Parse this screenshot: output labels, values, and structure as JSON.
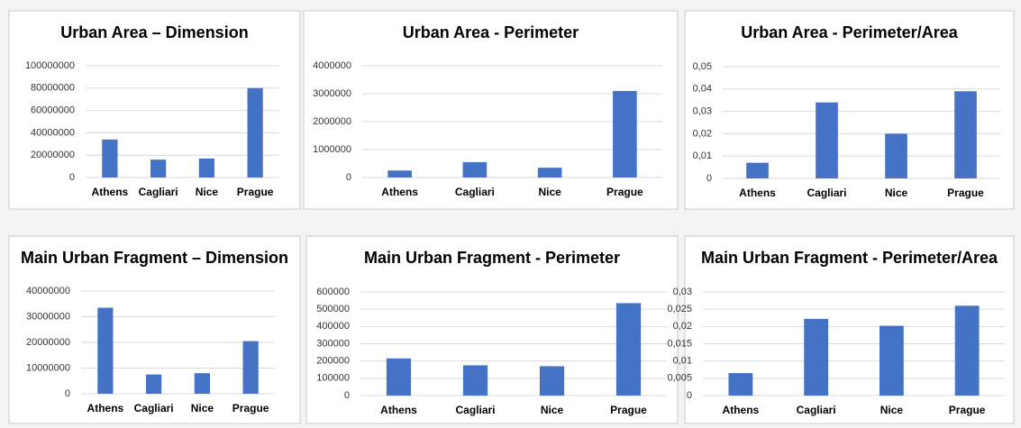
{
  "chart_data": [
    {
      "type": "bar",
      "title": "Urban Area – Dimension",
      "categories": [
        "Athens",
        "Cagliari",
        "Nice",
        "Prague"
      ],
      "values": [
        34000000,
        16000000,
        17000000,
        80000000
      ],
      "color": "#4472c4",
      "ylim": [
        0,
        100000000
      ],
      "yticks": [
        0,
        20000000,
        40000000,
        60000000,
        80000000,
        100000000
      ],
      "grid": true
    },
    {
      "type": "bar",
      "title": "Urban Area - Perimeter",
      "categories": [
        "Athens",
        "Cagliari",
        "Nice",
        "Prague"
      ],
      "values": [
        250000,
        550000,
        350000,
        3100000
      ],
      "color": "#4472c4",
      "ylim": [
        0,
        4000000
      ],
      "yticks": [
        0,
        1000000,
        2000000,
        3000000,
        4000000
      ],
      "grid": true
    },
    {
      "type": "bar",
      "title": "Urban Area - Perimeter/Area",
      "categories": [
        "Athens",
        "Cagliari",
        "Nice",
        "Prague"
      ],
      "values": [
        0.007,
        0.034,
        0.02,
        0.039
      ],
      "color": "#4472c4",
      "ylim": [
        0,
        0.05
      ],
      "yticks": [
        0,
        {
          "value": 0.01,
          "label": "0,01"
        },
        {
          "value": 0.02,
          "label": "0,02"
        },
        {
          "value": 0.03,
          "label": "0,03"
        },
        {
          "value": 0.04,
          "label": "0,04"
        },
        {
          "value": 0.05,
          "label": "0,05"
        }
      ],
      "grid": true
    },
    {
      "type": "bar",
      "title": "Main Urban Fragment – Dimension",
      "categories": [
        "Athens",
        "Cagliari",
        "Nice",
        "Prague"
      ],
      "values": [
        33500000,
        7500000,
        8000000,
        20500000
      ],
      "color": "#4472c4",
      "ylim": [
        0,
        40000000
      ],
      "yticks": [
        0,
        10000000,
        20000000,
        30000000,
        40000000
      ],
      "grid": true
    },
    {
      "type": "bar",
      "title": "Main Urban Fragment - Perimeter",
      "categories": [
        "Athens",
        "Cagliari",
        "Nice",
        "Prague"
      ],
      "values": [
        215000,
        175000,
        170000,
        535000
      ],
      "color": "#4472c4",
      "ylim": [
        0,
        600000
      ],
      "yticks": [
        0,
        100000,
        200000,
        300000,
        400000,
        500000,
        600000
      ],
      "grid": true
    },
    {
      "type": "bar",
      "title": "Main Urban Fragment - Perimeter/Area",
      "categories": [
        "Athens",
        "Cagliari",
        "Nice",
        "Prague"
      ],
      "values": [
        0.0065,
        0.0222,
        0.0202,
        0.026
      ],
      "color": "#4472c4",
      "ylim": [
        0,
        0.03
      ],
      "yticks": [
        0,
        {
          "value": 0.005,
          "label": "0,005"
        },
        {
          "value": 0.01,
          "label": "0,01"
        },
        {
          "value": 0.015,
          "label": "0,015"
        },
        {
          "value": 0.02,
          "label": "0,02"
        },
        {
          "value": 0.025,
          "label": "0,025"
        },
        {
          "value": 0.03,
          "label": "0,03"
        }
      ],
      "grid": true
    }
  ]
}
